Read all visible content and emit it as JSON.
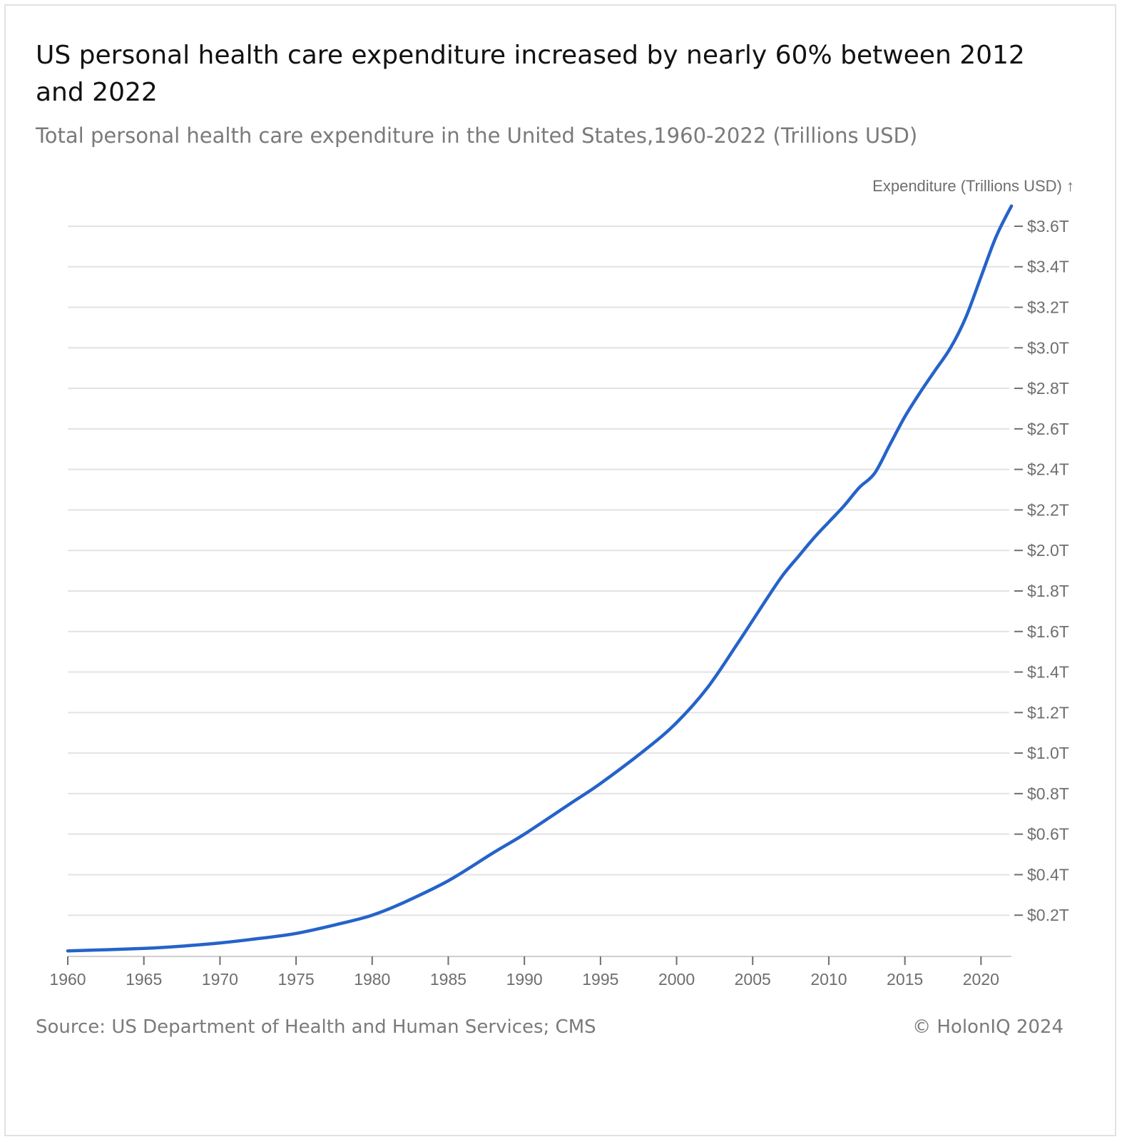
{
  "header": {
    "title": "US personal health care expenditure increased by nearly 60% between 2012 and 2022",
    "subtitle": "Total personal health care expenditure in the United States,1960-2022 (Trillions USD)"
  },
  "footer": {
    "source": "Source: US Department of Health and Human Services; CMS",
    "copyright": "© HolonIQ 2024"
  },
  "chart_data": {
    "type": "line",
    "ylabel": "Expenditure (Trillions USD) ↑",
    "xlim": [
      1960,
      2022
    ],
    "ylim": [
      0,
      3.6
    ],
    "x_ticks": [
      1960,
      1965,
      1970,
      1975,
      1980,
      1985,
      1990,
      1995,
      2000,
      2005,
      2010,
      2015,
      2020
    ],
    "y_ticks": [
      0.2,
      0.4,
      0.6,
      0.8,
      1.0,
      1.2,
      1.4,
      1.6,
      1.8,
      2.0,
      2.2,
      2.4,
      2.6,
      2.8,
      3.0,
      3.2,
      3.4,
      3.6
    ],
    "y_tick_labels": [
      "$0.2T",
      "$0.4T",
      "$0.6T",
      "$0.8T",
      "$1.0T",
      "$1.2T",
      "$1.4T",
      "$1.6T",
      "$1.8T",
      "$2.0T",
      "$2.2T",
      "$2.4T",
      "$2.6T",
      "$2.8T",
      "$3.0T",
      "$3.2T",
      "$3.4T",
      "$3.6T"
    ],
    "grid": true,
    "line_color": "#2563c9",
    "series": [
      {
        "x": [
          1960,
          1965,
          1968,
          1970,
          1972,
          1975,
          1978,
          1980,
          1982,
          1985,
          1988,
          1990,
          1993,
          1995,
          1998,
          2000,
          2002,
          2004,
          2006,
          2007,
          2008,
          2009,
          2010,
          2011,
          2012,
          2013,
          2014,
          2015,
          2016,
          2017,
          2018,
          2019,
          2020,
          2021,
          2022
        ],
        "y": [
          0.024,
          0.036,
          0.05,
          0.063,
          0.08,
          0.11,
          0.16,
          0.2,
          0.26,
          0.37,
          0.51,
          0.6,
          0.75,
          0.85,
          1.02,
          1.15,
          1.32,
          1.54,
          1.77,
          1.88,
          1.97,
          2.06,
          2.14,
          2.22,
          2.31,
          2.38,
          2.52,
          2.66,
          2.78,
          2.89,
          3.0,
          3.15,
          3.35,
          3.55,
          3.7
        ]
      }
    ]
  }
}
